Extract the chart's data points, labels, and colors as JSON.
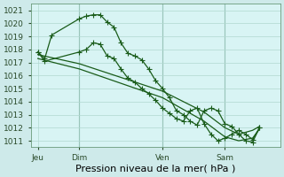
{
  "bg_color": "#ceeaea",
  "plot_bg_color": "#d8f4f4",
  "grid_color": "#b0d8d0",
  "line_color": "#1a5c1a",
  "vline_color": "#6a9a8a",
  "title": "Pression niveau de la mer( hPa )",
  "ylim": [
    1010.5,
    1021.5
  ],
  "yticks": [
    1011,
    1012,
    1013,
    1014,
    1015,
    1016,
    1017,
    1018,
    1019,
    1020,
    1021
  ],
  "xlabel_fontsize": 8,
  "tick_fontsize": 6.5,
  "xtick_labels": [
    "Jeu",
    "Dim",
    "Ven",
    "Sam"
  ],
  "xtick_positions": [
    0,
    24,
    72,
    108
  ],
  "vline_positions": [
    24,
    72,
    108
  ],
  "xlim": [
    -4,
    140
  ],
  "line1_x": [
    0,
    4,
    8,
    24,
    28,
    32,
    36,
    40,
    44,
    48,
    52,
    56,
    60,
    64,
    68,
    72,
    76,
    80,
    84,
    88,
    92,
    96,
    100,
    104,
    108,
    112,
    116,
    120,
    124,
    128
  ],
  "line1_y": [
    1017.8,
    1017.3,
    1019.1,
    1020.35,
    1020.55,
    1020.65,
    1020.65,
    1020.1,
    1019.7,
    1018.5,
    1017.7,
    1017.5,
    1017.2,
    1016.5,
    1015.6,
    1015.0,
    1014.3,
    1013.3,
    1013.0,
    1012.5,
    1012.2,
    1013.3,
    1013.5,
    1013.3,
    1012.3,
    1012.1,
    1011.5,
    1011.0,
    1010.9,
    1012.0
  ],
  "line2_x": [
    0,
    4,
    24,
    28,
    32,
    36,
    40,
    44,
    48,
    52,
    56,
    60,
    64,
    68,
    72,
    76,
    80,
    84,
    88,
    92,
    96,
    100,
    104,
    108,
    112,
    116,
    120,
    124,
    128
  ],
  "line2_y": [
    1017.8,
    1017.1,
    1017.8,
    1018.0,
    1018.5,
    1018.4,
    1017.5,
    1017.3,
    1016.5,
    1015.8,
    1015.5,
    1015.0,
    1014.6,
    1014.1,
    1013.5,
    1013.1,
    1012.7,
    1012.5,
    1013.3,
    1013.5,
    1012.3,
    1011.5,
    1011.0,
    1011.2,
    1011.5,
    1011.8,
    1011.5,
    1011.1,
    1012.0
  ],
  "line3_x": [
    0,
    24,
    72,
    96,
    108,
    116,
    124,
    128
  ],
  "line3_y": [
    1017.6,
    1016.9,
    1014.8,
    1013.2,
    1012.0,
    1011.5,
    1011.8,
    1012.1
  ],
  "line4_x": [
    0,
    24,
    72,
    96,
    108,
    116,
    124,
    128
  ],
  "line4_y": [
    1017.3,
    1016.5,
    1014.3,
    1012.5,
    1011.3,
    1011.0,
    1011.2,
    1011.9
  ]
}
